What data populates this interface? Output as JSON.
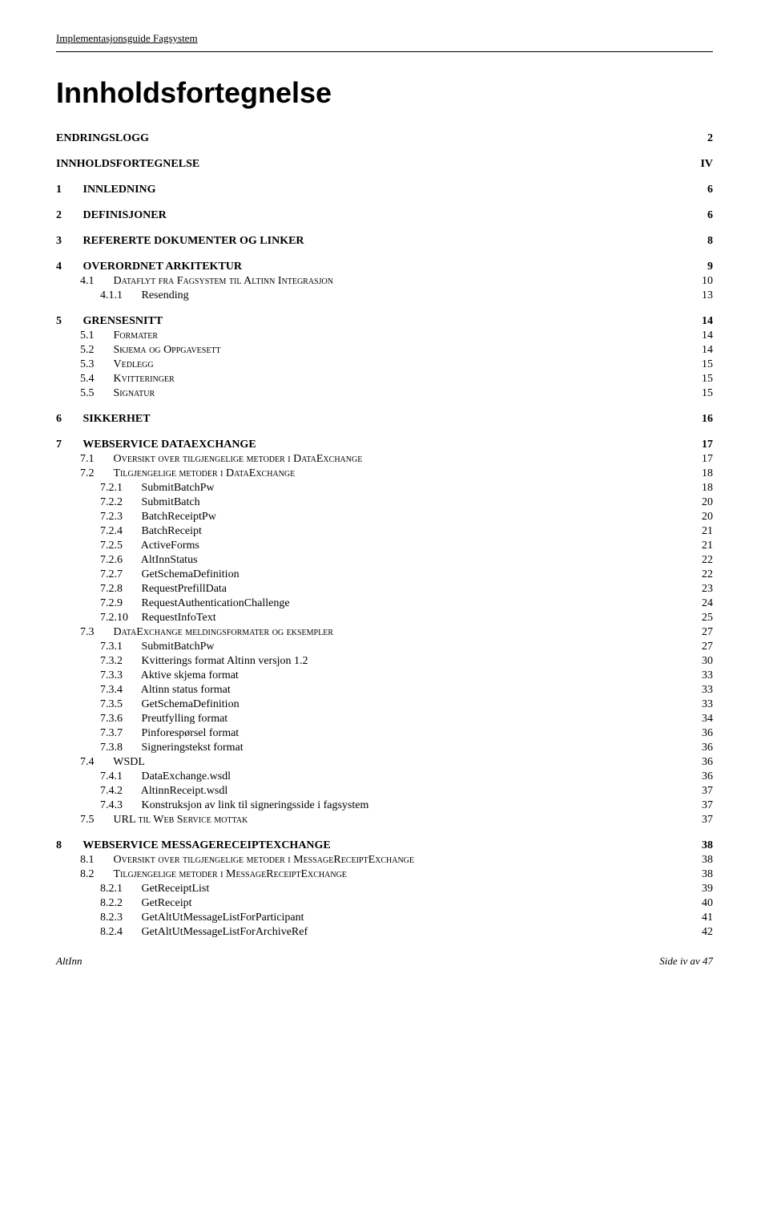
{
  "doc_header": "Implementasjonsguide Fagsystem",
  "page_title": "Innholdsfortegnelse",
  "footer_left": "AltInn",
  "footer_right": "Side iv av 47",
  "toc": [
    {
      "level": 1,
      "num": "",
      "label": "ENDRINGSLOGG",
      "page": "2",
      "smallcaps": false
    },
    {
      "level": 1,
      "num": "",
      "label": "INNHOLDSFORTEGNELSE",
      "page": "IV",
      "smallcaps": false
    },
    {
      "level": 1,
      "num": "1",
      "label": "INNLEDNING",
      "page": "6",
      "smallcaps": false
    },
    {
      "level": 1,
      "num": "2",
      "label": "DEFINISJONER",
      "page": "6",
      "smallcaps": false
    },
    {
      "level": 1,
      "num": "3",
      "label": "REFERERTE DOKUMENTER OG LINKER",
      "page": "8",
      "smallcaps": false
    },
    {
      "level": 1,
      "num": "4",
      "label": "OVERORDNET ARKITEKTUR",
      "page": "9",
      "smallcaps": false
    },
    {
      "level": 2,
      "num": "4.1",
      "label": "Dataflyt fra Fagsystem til Altinn Integrasjon",
      "page": "10",
      "smallcaps": true
    },
    {
      "level": 3,
      "num": "4.1.1",
      "label": "Resending",
      "page": "13",
      "smallcaps": false
    },
    {
      "level": 1,
      "num": "5",
      "label": "GRENSESNITT",
      "page": "14",
      "smallcaps": false
    },
    {
      "level": 2,
      "num": "5.1",
      "label": "Formater",
      "page": "14",
      "smallcaps": true
    },
    {
      "level": 2,
      "num": "5.2",
      "label": "Skjema og Oppgavesett",
      "page": "14",
      "smallcaps": true
    },
    {
      "level": 2,
      "num": "5.3",
      "label": "Vedlegg",
      "page": "15",
      "smallcaps": true
    },
    {
      "level": 2,
      "num": "5.4",
      "label": "Kvitteringer",
      "page": "15",
      "smallcaps": true
    },
    {
      "level": 2,
      "num": "5.5",
      "label": "Signatur",
      "page": "15",
      "smallcaps": true
    },
    {
      "level": 1,
      "num": "6",
      "label": "SIKKERHET",
      "page": "16",
      "smallcaps": false
    },
    {
      "level": 1,
      "num": "7",
      "label": "WEBSERVICE DATAEXCHANGE",
      "page": "17",
      "smallcaps": false
    },
    {
      "level": 2,
      "num": "7.1",
      "label": "Oversikt over tilgjengelige metoder i DataExchange",
      "page": "17",
      "smallcaps": true
    },
    {
      "level": 2,
      "num": "7.2",
      "label": "Tilgjengelige metoder i DataExchange",
      "page": "18",
      "smallcaps": true
    },
    {
      "level": 3,
      "num": "7.2.1",
      "label": "SubmitBatchPw",
      "page": "18",
      "smallcaps": false
    },
    {
      "level": 3,
      "num": "7.2.2",
      "label": "SubmitBatch",
      "page": "20",
      "smallcaps": false
    },
    {
      "level": 3,
      "num": "7.2.3",
      "label": "BatchReceiptPw",
      "page": "20",
      "smallcaps": false
    },
    {
      "level": 3,
      "num": "7.2.4",
      "label": "BatchReceipt",
      "page": "21",
      "smallcaps": false
    },
    {
      "level": 3,
      "num": "7.2.5",
      "label": "ActiveForms",
      "page": "21",
      "smallcaps": false
    },
    {
      "level": 3,
      "num": "7.2.6",
      "label": "AltInnStatus",
      "page": "22",
      "smallcaps": false
    },
    {
      "level": 3,
      "num": "7.2.7",
      "label": "GetSchemaDefinition",
      "page": "22",
      "smallcaps": false
    },
    {
      "level": 3,
      "num": "7.2.8",
      "label": "RequestPrefillData",
      "page": "23",
      "smallcaps": false
    },
    {
      "level": 3,
      "num": "7.2.9",
      "label": "RequestAuthenticationChallenge",
      "page": "24",
      "smallcaps": false
    },
    {
      "level": 3,
      "num": "7.2.10",
      "label": "RequestInfoText",
      "page": "25",
      "smallcaps": false
    },
    {
      "level": 2,
      "num": "7.3",
      "label": "DataExchange meldingsformater og eksempler",
      "page": "27",
      "smallcaps": true
    },
    {
      "level": 3,
      "num": "7.3.1",
      "label": "SubmitBatchPw",
      "page": "27",
      "smallcaps": false
    },
    {
      "level": 3,
      "num": "7.3.2",
      "label": "Kvitterings format Altinn versjon 1.2",
      "page": "30",
      "smallcaps": false
    },
    {
      "level": 3,
      "num": "7.3.3",
      "label": "Aktive skjema format",
      "page": "33",
      "smallcaps": false
    },
    {
      "level": 3,
      "num": "7.3.4",
      "label": "Altinn status format",
      "page": "33",
      "smallcaps": false
    },
    {
      "level": 3,
      "num": "7.3.5",
      "label": "GetSchemaDefinition",
      "page": "33",
      "smallcaps": false
    },
    {
      "level": 3,
      "num": "7.3.6",
      "label": "Preutfylling format",
      "page": "34",
      "smallcaps": false
    },
    {
      "level": 3,
      "num": "7.3.7",
      "label": "Pinforespørsel format",
      "page": "36",
      "smallcaps": false
    },
    {
      "level": 3,
      "num": "7.3.8",
      "label": "Signeringstekst format",
      "page": "36",
      "smallcaps": false
    },
    {
      "level": 2,
      "num": "7.4",
      "label": "WSDL",
      "page": "36",
      "smallcaps": false
    },
    {
      "level": 3,
      "num": "7.4.1",
      "label": "DataExchange.wsdl",
      "page": "36",
      "smallcaps": false
    },
    {
      "level": 3,
      "num": "7.4.2",
      "label": "AltinnReceipt.wsdl",
      "page": "37",
      "smallcaps": false
    },
    {
      "level": 3,
      "num": "7.4.3",
      "label": "Konstruksjon av link til signeringsside i fagsystem",
      "page": "37",
      "smallcaps": false
    },
    {
      "level": 2,
      "num": "7.5",
      "label": "URL til Web Service mottak",
      "page": "37",
      "smallcaps": true
    },
    {
      "level": 1,
      "num": "8",
      "label": "WEBSERVICE MESSAGERECEIPTEXCHANGE",
      "page": "38",
      "smallcaps": false
    },
    {
      "level": 2,
      "num": "8.1",
      "label": "Oversikt over tilgjengelige metoder i MessageReceiptExchange",
      "page": "38",
      "smallcaps": true
    },
    {
      "level": 2,
      "num": "8.2",
      "label": "Tilgjengelige metoder i MessageReceiptExchange",
      "page": "38",
      "smallcaps": true
    },
    {
      "level": 3,
      "num": "8.2.1",
      "label": "GetReceiptList",
      "page": "39",
      "smallcaps": false
    },
    {
      "level": 3,
      "num": "8.2.2",
      "label": "GetReceipt",
      "page": "40",
      "smallcaps": false
    },
    {
      "level": 3,
      "num": "8.2.3",
      "label": "GetAltUtMessageListForParticipant",
      "page": "41",
      "smallcaps": false
    },
    {
      "level": 3,
      "num": "8.2.4",
      "label": "GetAltUtMessageListForArchiveRef",
      "page": "42",
      "smallcaps": false
    }
  ]
}
